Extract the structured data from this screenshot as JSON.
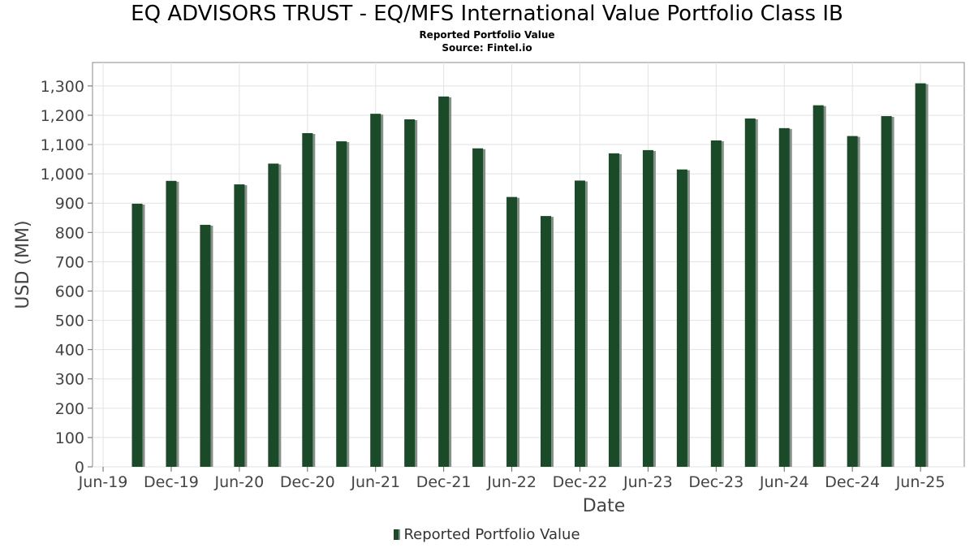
{
  "chart_data": {
    "type": "bar",
    "title": "EQ ADVISORS TRUST - EQ/MFS International Value Portfolio Class IB",
    "subtitle": "Reported Portfolio Value",
    "source": "Source: Fintel.io",
    "xlabel": "Date",
    "ylabel": "USD (MM)",
    "ylim": [
      0,
      1380
    ],
    "yticks": [
      0,
      100,
      200,
      300,
      400,
      500,
      600,
      700,
      800,
      900,
      1000,
      1100,
      1200,
      1300
    ],
    "ytick_labels": [
      "0",
      "100",
      "200",
      "300",
      "400",
      "500",
      "600",
      "700",
      "800",
      "900",
      "1,000",
      "1,100",
      "1,200",
      "1,300"
    ],
    "xtick_labels": [
      "Jun-19",
      "Dec-19",
      "Jun-20",
      "Dec-20",
      "Jun-21",
      "Dec-21",
      "Jun-22",
      "Dec-22",
      "Jun-23",
      "Dec-23",
      "Jun-24",
      "Dec-24",
      "Jun-25"
    ],
    "series": [
      {
        "name": "Reported Portfolio Value",
        "color": "#1a4a27",
        "values": [
          898,
          976,
          826,
          964,
          1035,
          1139,
          1111,
          1205,
          1186,
          1264,
          1087,
          921,
          856,
          977,
          1070,
          1081,
          1015,
          1114,
          1189,
          1156,
          1234,
          1129,
          1197,
          1309
        ]
      }
    ],
    "legend_position": "bottom-center",
    "grid": true
  }
}
